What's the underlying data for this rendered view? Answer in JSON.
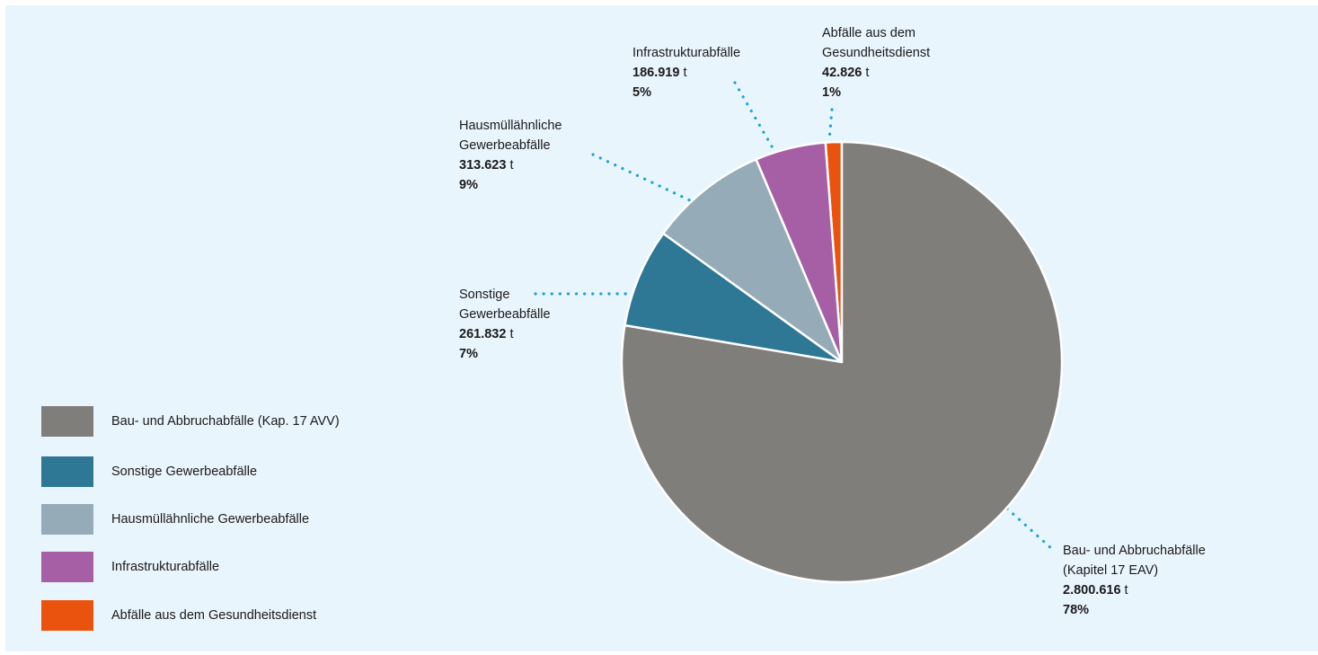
{
  "chart_data": {
    "type": "pie",
    "unit": "t",
    "slices": [
      {
        "name": "Bau- und Abbruchabfälle (Kapitel 17 EAV)",
        "legend": "Bau- und Abbruchabfälle (Kap. 17 AVV)",
        "value": 2800616,
        "value_label": "2.800.616",
        "percent": "78%",
        "color": "#807e7a"
      },
      {
        "name": "Sonstige Gewerbeabfälle",
        "legend": "Sonstige Gewerbeabfälle",
        "value": 261832,
        "value_label": "261.832",
        "percent": "7%",
        "color": "#2e7795"
      },
      {
        "name": "Hausmüllähnliche Gewerbeabfälle",
        "legend": "Hausmüllähnliche Gewerbeabfälle",
        "value": 313623,
        "value_label": "313.623",
        "percent": "9%",
        "color": "#95abb8"
      },
      {
        "name": "Infrastrukturabfälle",
        "legend": "Infrastrukturabfälle",
        "value": 186919,
        "value_label": "186.919",
        "percent": "5%",
        "color": "#a65fa5"
      },
      {
        "name": "Abfälle aus dem Gesundheitsdienst",
        "legend": "Abfälle aus dem Gesundheitsdienst",
        "value": 42826,
        "value_label": "42.826",
        "percent": "1%",
        "color": "#e9530e"
      }
    ],
    "start": "12 o'clock",
    "direction": "clockwise",
    "legend_position": "bottom-left"
  },
  "labels": {
    "bau": {
      "line1": "Bau- und Abbruchabfälle",
      "line2": "(Kapitel 17 EAV)",
      "value": "2.800.616",
      "unit": "t",
      "percent": "78%"
    },
    "sonstige": {
      "line1": "Sonstige",
      "line2": "Gewerbeabfälle",
      "value": "261.832",
      "unit": "t",
      "percent": "7%"
    },
    "haus": {
      "line1": "Hausmüllähnliche",
      "line2": "Gewerbeabfälle",
      "value": "313.623",
      "unit": "t",
      "percent": "9%"
    },
    "infra": {
      "line1": "Infrastrukturabfälle",
      "value": "186.919",
      "unit": "t",
      "percent": "5%"
    },
    "gesund": {
      "line1": "Abfälle aus dem",
      "line2": "Gesundheitsdienst",
      "value": "42.826",
      "unit": "t",
      "percent": "1%"
    }
  },
  "legend": [
    {
      "label": "Bau- und Abbruchabfälle (Kap. 17 AVV)",
      "color": "#807e7a"
    },
    {
      "label": "Sonstige Gewerbeabfälle",
      "color": "#2e7795"
    },
    {
      "label": "Hausmüllähnliche Gewerbeabfälle",
      "color": "#95abb8"
    },
    {
      "label": "Infrastrukturabfälle",
      "color": "#a65fa5"
    },
    {
      "label": "Abfälle aus dem Gesundheitsdienst",
      "color": "#e9530e"
    }
  ],
  "leader_color": "#1aa3d9"
}
